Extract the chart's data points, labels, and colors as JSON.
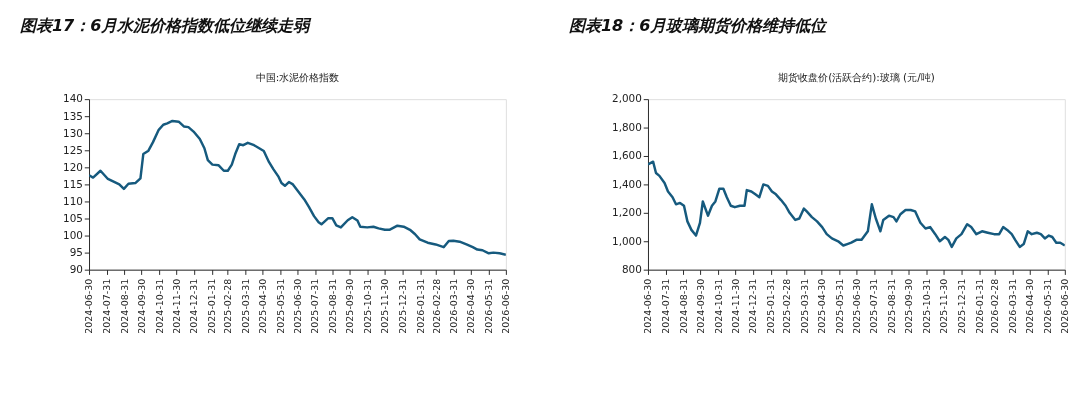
{
  "chart_data": [
    {
      "type": "line",
      "title": "图表17：6月水泥价格指数低位继续走弱",
      "subtitle": "中国:水泥价格指数",
      "x": [
        "2024-06-30",
        "2024-07-07",
        "2024-07-20",
        "2024-08-02",
        "2024-08-22",
        "2024-08-30",
        "2024-09-07",
        "2024-09-19",
        "2024-09-28",
        "2024-10-03",
        "2024-10-12",
        "2024-10-20",
        "2024-10-30",
        "2024-11-07",
        "2024-11-14",
        "2024-11-23",
        "2024-12-04",
        "2024-12-13",
        "2024-12-21",
        "2024-12-30",
        "2025-01-10",
        "2025-01-18",
        "2025-01-24",
        "2025-02-01",
        "2025-02-12",
        "2025-02-21",
        "2025-02-28",
        "2025-03-07",
        "2025-03-13",
        "2025-03-20",
        "2025-03-27",
        "2025-04-04",
        "2025-04-15",
        "2025-04-24",
        "2025-05-02",
        "2025-05-11",
        "2025-05-19",
        "2025-05-28",
        "2025-06-02",
        "2025-06-08",
        "2025-06-15",
        "2025-06-22",
        "2025-07-02",
        "2025-07-12",
        "2025-07-20",
        "2025-07-29",
        "2025-08-06",
        "2025-08-11",
        "2025-08-23",
        "2025-08-30",
        "2025-09-06",
        "2025-09-14",
        "2025-09-26",
        "2025-10-04",
        "2025-10-13",
        "2025-10-18",
        "2025-10-30",
        "2025-11-10",
        "2025-11-19",
        "2025-11-30",
        "2025-12-08",
        "2025-12-22",
        "2026-01-02",
        "2026-01-13",
        "2026-01-22",
        "2026-01-30",
        "2026-02-13",
        "2026-02-27",
        "2026-03-13",
        "2026-03-22",
        "2026-03-30",
        "2026-04-10",
        "2026-04-22",
        "2026-05-03",
        "2026-05-11",
        "2026-05-20",
        "2026-05-31",
        "2026-06-08",
        "2026-06-19",
        "2026-06-30"
      ],
      "series": [
        {
          "color": "#165a7e",
          "values": [
            117.7,
            117.0,
            119.0,
            116.6,
            115.0,
            113.7,
            115.2,
            115.4,
            116.8,
            123.9,
            124.9,
            127.4,
            131.0,
            132.5,
            132.9,
            133.6,
            133.4,
            132.0,
            131.8,
            130.5,
            128.3,
            125.6,
            122.1,
            120.8,
            120.6,
            119.0,
            119.0,
            120.8,
            123.9,
            126.8,
            126.5,
            127.2,
            126.5,
            125.6,
            124.8,
            121.6,
            119.4,
            117.2,
            115.4,
            114.6,
            115.7,
            115.0,
            112.8,
            110.6,
            108.4,
            105.7,
            103.9,
            103.3,
            105.1,
            105.1,
            103.0,
            102.4,
            104.5,
            105.4,
            104.4,
            102.6,
            102.4,
            102.6,
            102.1,
            101.7,
            101.7,
            102.9,
            102.6,
            101.7,
            100.4,
            98.9,
            97.9,
            97.4,
            96.6,
            98.4,
            98.5,
            98.2,
            97.4,
            96.6,
            95.9,
            95.7,
            94.8,
            95.0,
            94.8,
            94.4
          ]
        }
      ],
      "xlim": [
        "2024-06-30",
        "2026-06-30"
      ],
      "xticks": [
        "2024-06-30",
        "2024-07-31",
        "2024-08-31",
        "2024-09-30",
        "2024-10-31",
        "2024-11-30",
        "2024-12-31",
        "2025-01-31",
        "2025-02-28",
        "2025-03-31",
        "2025-04-30",
        "2025-05-31",
        "2025-06-30",
        "2025-07-31",
        "2025-08-31",
        "2025-09-30",
        "2025-10-31",
        "2025-11-30",
        "2025-12-31",
        "2026-01-31",
        "2026-02-28",
        "2026-03-31",
        "2026-04-30",
        "2026-05-31",
        "2026-06-30"
      ],
      "ylim": [
        90,
        140
      ],
      "yticks": [
        90,
        95,
        100,
        105,
        110,
        115,
        120,
        125,
        130,
        135,
        140
      ],
      "grid": false,
      "legend": false,
      "marker": "none",
      "line_style": "solid"
    },
    {
      "type": "line",
      "title": "图表18：6月玻璃期货价格维持低位",
      "subtitle": "期货收盘价(活跃合约):玻璃 (元/吨)",
      "x": [
        "2024-06-30",
        "2024-07-09",
        "2024-07-14",
        "2024-07-20",
        "2024-07-29",
        "2024-08-04",
        "2024-08-12",
        "2024-08-18",
        "2024-08-25",
        "2024-09-01",
        "2024-09-07",
        "2024-09-14",
        "2024-09-22",
        "2024-09-29",
        "2024-10-04",
        "2024-10-13",
        "2024-10-20",
        "2024-10-26",
        "2024-11-02",
        "2024-11-09",
        "2024-11-15",
        "2024-11-22",
        "2024-11-29",
        "2024-12-08",
        "2024-12-16",
        "2024-12-20",
        "2024-12-28",
        "2025-01-04",
        "2025-01-11",
        "2025-01-18",
        "2025-01-26",
        "2025-02-02",
        "2025-02-09",
        "2025-02-18",
        "2025-02-26",
        "2025-03-05",
        "2025-03-15",
        "2025-03-22",
        "2025-03-30",
        "2025-04-04",
        "2025-04-13",
        "2025-04-22",
        "2025-05-01",
        "2025-05-09",
        "2025-05-18",
        "2025-05-29",
        "2025-06-07",
        "2025-06-14",
        "2025-06-21",
        "2025-06-30",
        "2025-07-09",
        "2025-07-20",
        "2025-07-27",
        "2025-08-03",
        "2025-08-11",
        "2025-08-16",
        "2025-08-26",
        "2025-09-03",
        "2025-09-08",
        "2025-09-15",
        "2025-09-24",
        "2025-10-03",
        "2025-10-11",
        "2025-10-20",
        "2025-10-29",
        "2025-11-06",
        "2025-11-15",
        "2025-11-23",
        "2025-12-02",
        "2025-12-08",
        "2025-12-14",
        "2025-12-22",
        "2025-12-31",
        "2026-01-10",
        "2026-01-17",
        "2026-01-26",
        "2026-02-05",
        "2026-02-15",
        "2026-02-26",
        "2026-03-07",
        "2026-03-14",
        "2026-03-21",
        "2026-03-29",
        "2026-04-04",
        "2026-04-12",
        "2026-04-19",
        "2026-04-26",
        "2026-05-03",
        "2026-05-12",
        "2026-05-19",
        "2026-05-26",
        "2026-06-02",
        "2026-06-08",
        "2026-06-15",
        "2026-06-22",
        "2026-06-30"
      ],
      "series": [
        {
          "color": "#165a7e",
          "values": [
            1540,
            1560,
            1480,
            1460,
            1410,
            1350,
            1310,
            1260,
            1270,
            1250,
            1140,
            1080,
            1040,
            1130,
            1280,
            1180,
            1250,
            1280,
            1370,
            1370,
            1310,
            1250,
            1240,
            1250,
            1250,
            1360,
            1350,
            1330,
            1310,
            1400,
            1390,
            1350,
            1330,
            1290,
            1250,
            1200,
            1150,
            1160,
            1230,
            1210,
            1170,
            1140,
            1100,
            1050,
            1020,
            1000,
            970,
            980,
            990,
            1010,
            1010,
            1070,
            1260,
            1160,
            1070,
            1150,
            1180,
            1170,
            1140,
            1190,
            1220,
            1220,
            1210,
            1130,
            1090,
            1100,
            1050,
            1000,
            1030,
            1010,
            960,
            1020,
            1050,
            1120,
            1100,
            1050,
            1070,
            1060,
            1050,
            1050,
            1100,
            1080,
            1050,
            1010,
            960,
            980,
            1070,
            1050,
            1060,
            1050,
            1020,
            1040,
            1030,
            990,
            990,
            970
          ]
        }
      ],
      "xlim": [
        "2024-06-30",
        "2026-06-30"
      ],
      "xticks": [
        "2024-06-30",
        "2024-07-31",
        "2024-08-31",
        "2024-09-30",
        "2024-10-31",
        "2024-11-30",
        "2024-12-31",
        "2025-01-31",
        "2025-02-28",
        "2025-03-31",
        "2025-04-30",
        "2025-05-31",
        "2025-06-30",
        "2025-07-31",
        "2025-08-31",
        "2025-09-30",
        "2025-10-31",
        "2025-11-30",
        "2025-12-31",
        "2026-01-31",
        "2026-02-28",
        "2026-03-31",
        "2026-04-30",
        "2026-05-31",
        "2026-06-30"
      ],
      "ylim": [
        800,
        2000
      ],
      "yticks": [
        {
          "value": 800,
          "label": "800"
        },
        {
          "value": 1000,
          "label": "1,000"
        },
        {
          "value": 1200,
          "label": "1,200"
        },
        {
          "value": 1400,
          "label": "1,400"
        },
        {
          "value": 1600,
          "label": "1,600"
        },
        {
          "value": 1800,
          "label": "1,800"
        },
        {
          "value": 2000,
          "label": "2,000"
        }
      ],
      "grid": false,
      "legend": false,
      "marker": "none",
      "line_style": "solid"
    }
  ]
}
